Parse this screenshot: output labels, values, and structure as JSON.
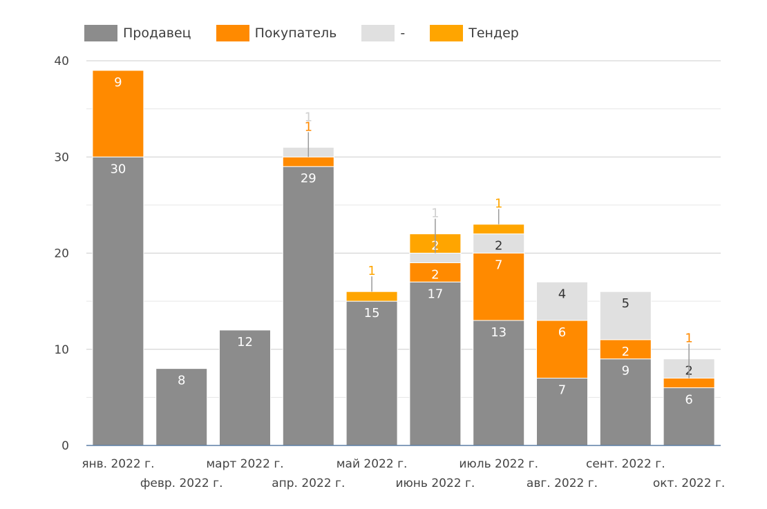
{
  "chart_data": {
    "type": "bar",
    "stacked": true,
    "categories": [
      "янв. 2022 г.",
      "февр. 2022 г.",
      "март 2022 г.",
      "апр. 2022 г.",
      "май 2022 г.",
      "июнь 2022 г.",
      "июль 2022 г.",
      "авг. 2022 г.",
      "сент. 2022 г.",
      "окт. 2022 г."
    ],
    "series": [
      {
        "name": "Продавец",
        "color": "#8c8c8c",
        "label_color": "#ffffff",
        "values": [
          30,
          8,
          12,
          29,
          15,
          17,
          13,
          7,
          9,
          6
        ]
      },
      {
        "name": "Покупатель",
        "color": "#ff8a00",
        "label_color": "#ffffff",
        "values": [
          9,
          0,
          0,
          1,
          0,
          2,
          7,
          6,
          2,
          1
        ]
      },
      {
        "name": "-",
        "color": "#e0e0e0",
        "label_color": "#333333",
        "values": [
          0,
          0,
          0,
          1,
          0,
          1,
          2,
          4,
          5,
          2
        ]
      },
      {
        "name": "Тендер",
        "color": "#ffa500",
        "label_color": "#ffffff",
        "values": [
          0,
          0,
          0,
          0,
          1,
          2,
          1,
          0,
          0,
          0
        ]
      }
    ],
    "ylim": [
      0,
      40
    ],
    "yticks": [
      0,
      10,
      20,
      30,
      40
    ],
    "grid": true,
    "legend": "top-left",
    "title": "",
    "xlabel": "",
    "ylabel": ""
  }
}
